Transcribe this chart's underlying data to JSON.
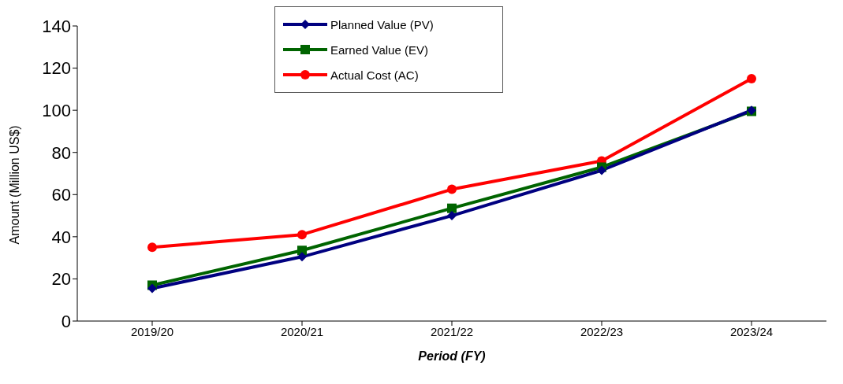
{
  "chart_data": {
    "type": "line",
    "xlabel": "Period (FY)",
    "ylabel": "Amount (Million US$)",
    "categories": [
      "2019/20",
      "2020/21",
      "2021/22",
      "2022/23",
      "2023/24"
    ],
    "series": [
      {
        "name": "Planned Value (PV)",
        "color": "#000080",
        "marker": "diamond",
        "values": [
          15.5,
          30.5,
          50,
          71.5,
          100
        ]
      },
      {
        "name": "Earned Value (EV)",
        "color": "#006400",
        "marker": "square",
        "values": [
          17,
          33.5,
          53.5,
          73,
          99.5
        ]
      },
      {
        "name": "Actual Cost (AC)",
        "color": "#ff0000",
        "marker": "circle",
        "values": [
          35,
          41,
          62.5,
          76,
          115
        ]
      }
    ],
    "ylim": [
      0,
      140
    ],
    "yticks": [
      0,
      20,
      40,
      60,
      80,
      100,
      120,
      140
    ],
    "grid": false,
    "legend": "top"
  }
}
